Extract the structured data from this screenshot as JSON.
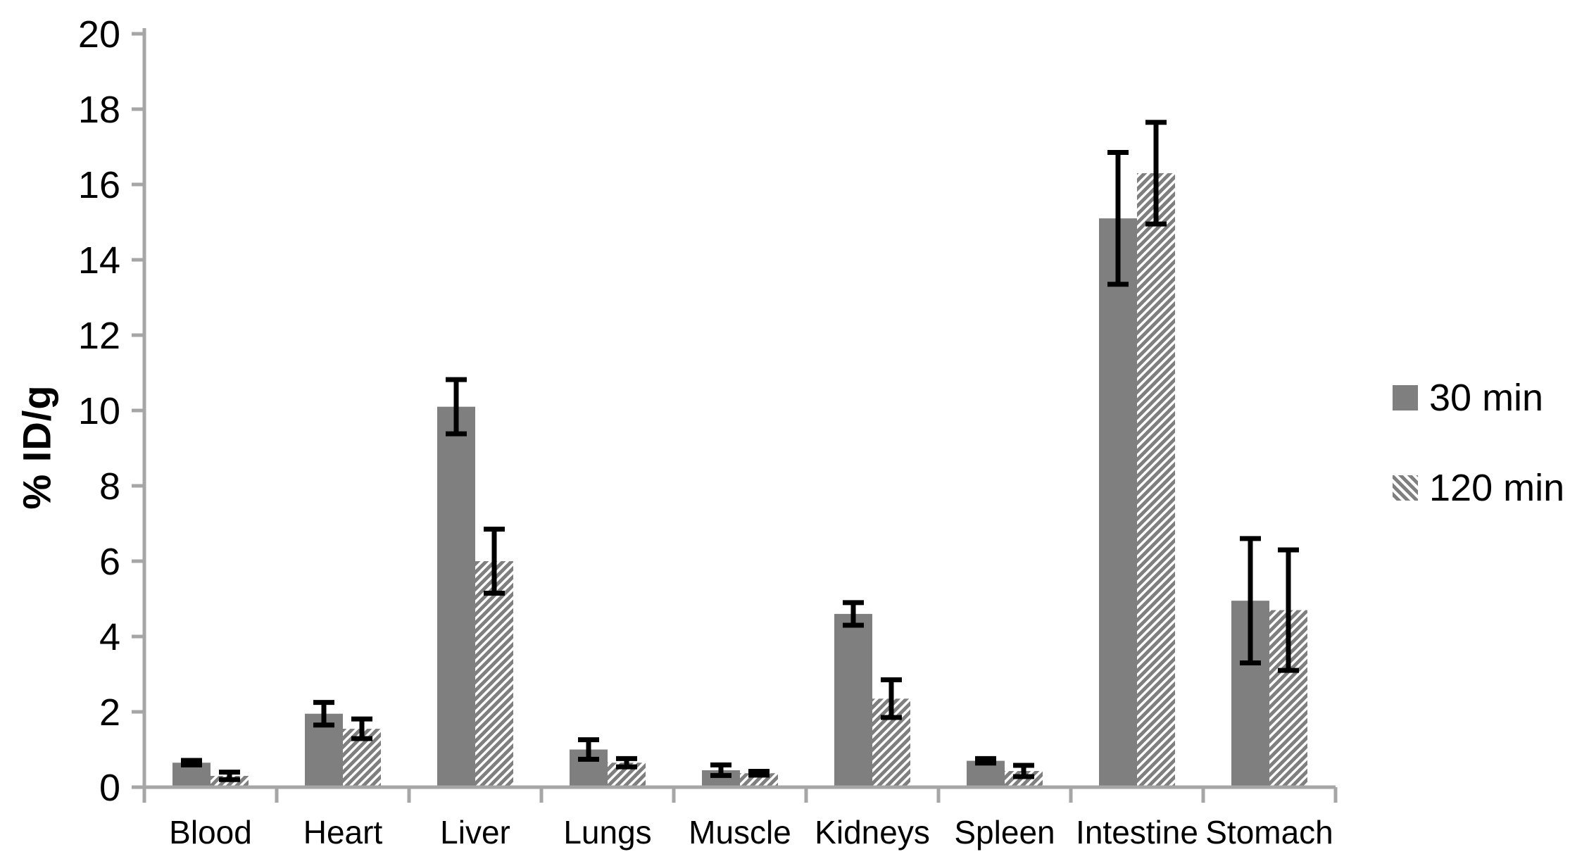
{
  "chart_data": {
    "type": "bar",
    "title": "",
    "xlabel": "",
    "ylabel": "% ID/g",
    "ylim": [
      0,
      20
    ],
    "ytick_step": 2,
    "grid": false,
    "legend_position": "right",
    "categories": [
      "Blood",
      "Heart",
      "Liver",
      "Lungs",
      "Muscle",
      "Kidneys",
      "Spleen",
      "Intestine",
      "Stomach"
    ],
    "series": [
      {
        "name": "30 min",
        "style": "solid",
        "values": [
          0.65,
          1.95,
          10.1,
          1.0,
          0.45,
          4.6,
          0.7,
          15.1,
          4.95
        ],
        "errors": [
          0.06,
          0.3,
          0.72,
          0.26,
          0.14,
          0.3,
          0.06,
          1.75,
          1.65
        ]
      },
      {
        "name": "120 min",
        "style": "hatched",
        "values": [
          0.3,
          1.55,
          6.0,
          0.65,
          0.37,
          2.35,
          0.43,
          16.3,
          4.7
        ],
        "errors": [
          0.1,
          0.26,
          0.85,
          0.11,
          0.05,
          0.5,
          0.15,
          1.35,
          1.6
        ]
      }
    ]
  },
  "colors": {
    "bar": "#7f7f7f",
    "axis": "#a6a6a6",
    "error_bar": "#000000",
    "text": "#000000",
    "background": "#ffffff"
  }
}
